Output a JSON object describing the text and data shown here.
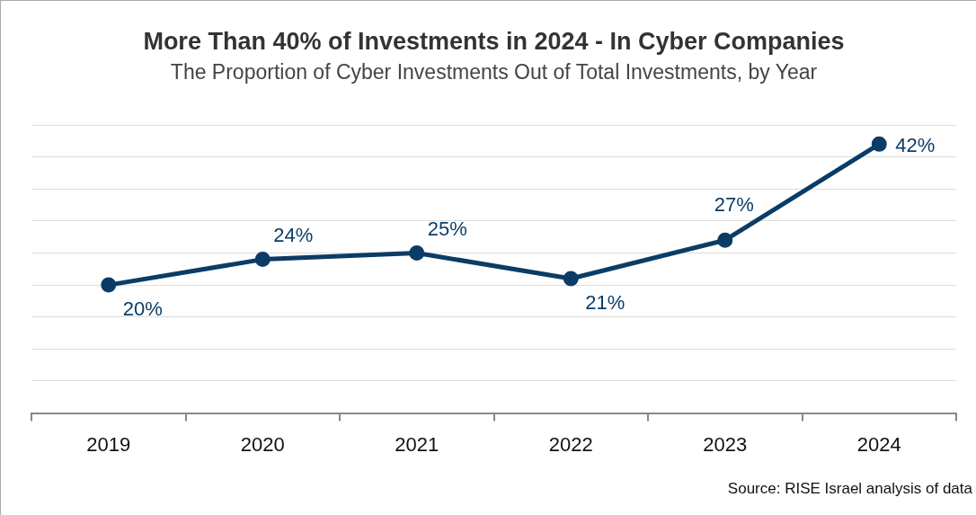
{
  "chart_data": {
    "type": "line",
    "title": "More Than 40% of Investments in 2024 - In Cyber Companies",
    "subtitle": "The Proportion of Cyber Investments Out of Total Investments, by Year",
    "categories": [
      "2019",
      "2020",
      "2021",
      "2022",
      "2023",
      "2024"
    ],
    "series": [
      {
        "color": "#0b3c66",
        "values": [
          20,
          24,
          25,
          21,
          27,
          42
        ],
        "value_labels": [
          "20%",
          "24%",
          "25%",
          "21%",
          "27%",
          "42%"
        ]
      }
    ],
    "ylim": [
      0,
      45
    ],
    "yticks": [
      {
        "value": 0,
        "label": null
      },
      {
        "value": 5,
        "label": null
      },
      {
        "value": 10,
        "label": null
      },
      {
        "value": 15,
        "label": null
      },
      {
        "value": 20,
        "label": null
      },
      {
        "value": 25,
        "label": null
      },
      {
        "value": 30,
        "label": null
      },
      {
        "value": 35,
        "label": null
      },
      {
        "value": 40,
        "label": null
      },
      {
        "value": 45,
        "label": null
      }
    ],
    "tick_labels": "x",
    "grid": "y",
    "legend": false,
    "marker": "circle",
    "line_style": "solid",
    "annotations": [
      "Source: RISE Israel analysis of data"
    ]
  }
}
